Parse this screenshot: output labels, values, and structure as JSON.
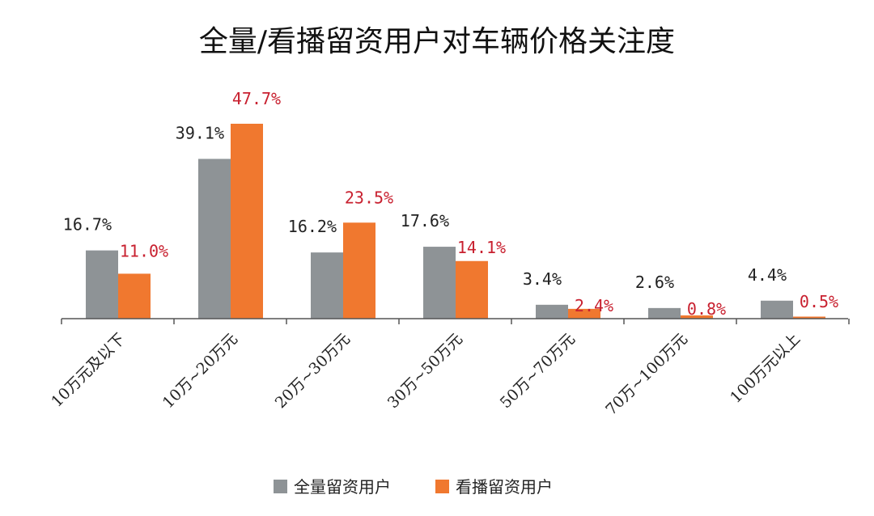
{
  "chart_data": {
    "type": "bar",
    "title": "全量/看播留资用户对车辆价格关注度",
    "categories": [
      "10万元及以下",
      "10万~20万元",
      "20万~30万元",
      "30万~50万元",
      "50万~70万元",
      "70万~100万元",
      "100万元以上"
    ],
    "series": [
      {
        "name": "全量留资用户",
        "color": "#8e9396",
        "values": [
          16.7,
          39.1,
          16.2,
          17.6,
          3.4,
          2.6,
          4.4
        ],
        "labels": [
          "16.7%",
          "39.1%",
          "16.2%",
          "17.6%",
          "3.4%",
          "2.6%",
          "4.4%"
        ],
        "label_color": "#222222"
      },
      {
        "name": "看播留资用户",
        "color": "#f0782f",
        "values": [
          11.0,
          47.7,
          23.5,
          14.1,
          2.4,
          0.8,
          0.5
        ],
        "labels": [
          "11.0%",
          "47.7%",
          "23.5%",
          "14.1%",
          "2.4%",
          "0.8%",
          "0.5%"
        ],
        "label_color": "#c8202f"
      }
    ],
    "xlabel": "",
    "ylabel": "",
    "ylim": [
      0,
      50
    ],
    "grid": false,
    "legend_position": "bottom-center",
    "axis_color": "#555555"
  }
}
